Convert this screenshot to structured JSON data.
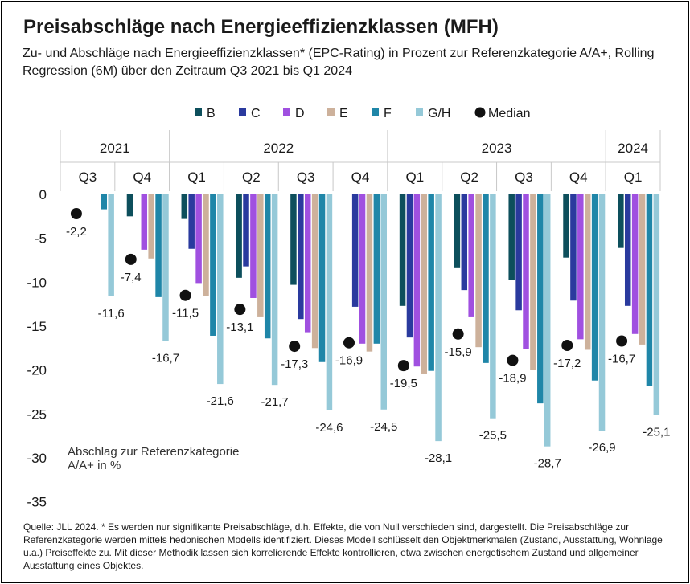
{
  "title": "Preisabschläge nach Energieeffizienzklassen (MFH)",
  "subtitle": "Zu- und Abschläge nach Energieeffizienzklassen* (EPC-Rating) in Prozent zur Referenzkategorie A/A+, Rolling Regression (6M) über den Zeitraum Q3 2021 bis Q1 2024",
  "source": "Quelle: JLL 2024. * Es werden nur signifikante Preisabschläge, d.h. Effekte, die von Null verschieden sind, dargestellt. Die Preisabschläge zur Referenzkategorie werden mittels hedonischen Modells identifiziert. Dieses Modell schlüsselt den Objektmerkmalen (Zustand, Ausstattung, Wohnlage u.a.) Preiseffekte zu. Mit dieser Methodik lassen sich korrelierende Effekte kontrollieren, etwa zwischen energetischem Zustand und allgemeiner Ausstattung eines Objektes.",
  "chart_data": {
    "type": "bar",
    "title": "Preisabschläge nach Energieeffizienzklassen (MFH)",
    "ylabel": "Abschlag zur Referenzkategorie A/A+ in %",
    "ylim": [
      -35,
      0
    ],
    "yticks": [
      0,
      -5,
      -10,
      -15,
      -20,
      -25,
      -30,
      -35
    ],
    "grid": false,
    "legend_position": "top",
    "years": [
      {
        "label": "2021",
        "span": 2
      },
      {
        "label": "2022",
        "span": 4
      },
      {
        "label": "2023",
        "span": 4
      },
      {
        "label": "2024",
        "span": 1
      }
    ],
    "categories": [
      "Q3",
      "Q4",
      "Q1",
      "Q2",
      "Q3",
      "Q4",
      "Q1",
      "Q2",
      "Q3",
      "Q4",
      "Q1"
    ],
    "series": [
      {
        "name": "B",
        "color": "#0d4f5c",
        "values": [
          null,
          -2.5,
          -2.8,
          -9.5,
          -10.3,
          null,
          -12.7,
          -8.4,
          -9.7,
          -7.2,
          -6.1
        ]
      },
      {
        "name": "C",
        "color": "#2a3a9e",
        "values": [
          null,
          null,
          -6.2,
          -8.2,
          -14.2,
          -12.8,
          -16.3,
          -10.9,
          -13.2,
          -12.1,
          -12.7
        ]
      },
      {
        "name": "D",
        "color": "#a050e0",
        "values": [
          null,
          -6.3,
          -10.1,
          -11.8,
          -15.7,
          -17.0,
          -19.6,
          -13.9,
          -17.6,
          -16.5,
          -15.9
        ]
      },
      {
        "name": "E",
        "color": "#cdb19b",
        "values": [
          null,
          -7.3,
          -11.6,
          -13.9,
          -17.5,
          -17.9,
          -20.4,
          -17.4,
          -20.0,
          -17.7,
          -17.1
        ]
      },
      {
        "name": "F",
        "color": "#1f86a8",
        "values": [
          -1.7,
          -11.7,
          -16.1,
          -16.4,
          -19.1,
          -17.0,
          -20.1,
          -19.2,
          -23.8,
          -21.2,
          -21.8
        ]
      },
      {
        "name": "G/H",
        "color": "#95c9d8",
        "values": [
          -11.6,
          -16.7,
          -21.6,
          -21.7,
          -24.6,
          -24.5,
          -28.1,
          -25.5,
          -28.7,
          -26.9,
          -25.1
        ]
      }
    ],
    "median": {
      "name": "Median",
      "color": "#111111",
      "values": [
        -2.2,
        -7.4,
        -11.5,
        -13.1,
        -17.3,
        -16.9,
        -19.5,
        -15.9,
        -18.9,
        -17.2,
        -16.7
      ]
    },
    "median_labels": [
      "-2,2",
      "-7,4",
      "-11,5",
      "-13,1",
      "-17,3",
      "-16,9",
      "-19,5",
      "-15,9",
      "-18,9",
      "-17,2",
      "-16,7"
    ],
    "gh_labels": [
      "-11,6",
      "-16,7",
      "-21,6",
      "-21,7",
      "-24,6",
      "-24,5",
      "-28,1",
      "-25,5",
      "-28,7",
      "-26,9",
      "-25,1"
    ]
  }
}
